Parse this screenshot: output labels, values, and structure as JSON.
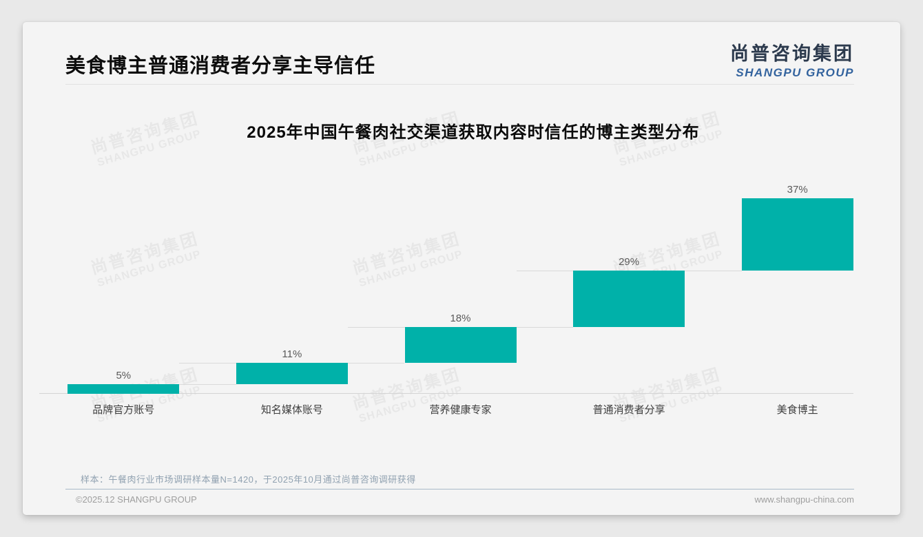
{
  "page": {
    "title": "美食博主普通消费者分享主导信任",
    "logo": {
      "cn": "尚普咨询集团",
      "en": "SHANGPU GROUP"
    },
    "watermark": {
      "cn": "尚普咨询集团",
      "en": "SHANGPU GROUP"
    },
    "note": "样本：午餐肉行业市场调研样本量N=1420，于2025年10月通过尚普咨询调研获得",
    "footer_left": "©2025.12 SHANGPU GROUP",
    "footer_right": "www.shangpu-china.com"
  },
  "chart_data": {
    "type": "bar",
    "subtype": "waterfall",
    "title": "2025年中国午餐肉社交渠道获取内容时信任的博主类型分布",
    "categories": [
      "品牌官方账号",
      "知名媒体账号",
      "营养健康专家",
      "普通消费者分享",
      "美食博主"
    ],
    "values": [
      5,
      11,
      18,
      29,
      37
    ],
    "labels": [
      "5%",
      "11%",
      "18%",
      "29%",
      "37%"
    ],
    "cumulative": [
      5,
      16,
      34,
      63,
      100
    ],
    "unit": "%",
    "ylim": [
      0,
      100
    ],
    "grid": false,
    "legend": false,
    "bar_color": "#00b1a9",
    "value_label_color": "#595959",
    "connector_color": "#d9d9d9",
    "baseline_color": "#d4d4d4"
  },
  "colors": {
    "card_bg": "#f4f4f4",
    "page_bg": "#e9e9e9",
    "logo_cn": "#2c3a4d",
    "logo_en": "#33639e",
    "note_text": "#90a1b0",
    "footer_rule": "#a9bac8"
  }
}
